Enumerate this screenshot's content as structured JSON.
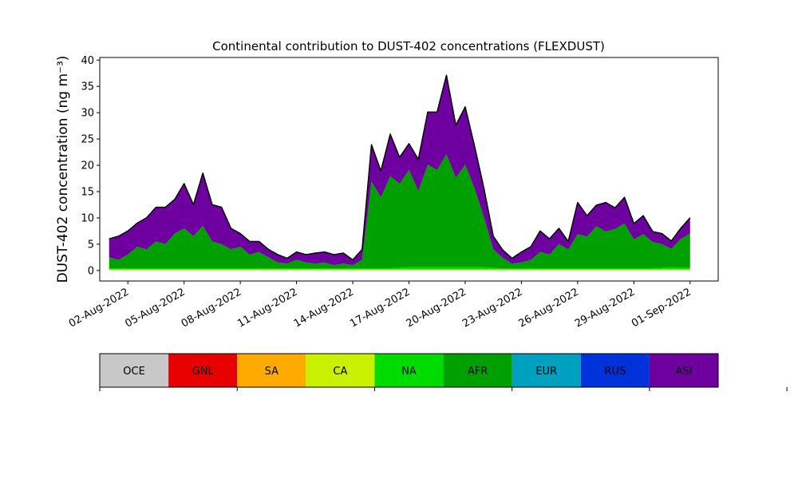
{
  "chart_data": {
    "type": "area",
    "title": "Continental contribution to DUST-402 concentrations (FLEXDUST)",
    "ylabel": "DUST-402 concentration (ng m⁻³)",
    "ylim": [
      -2,
      40.5
    ],
    "yticks": [
      0,
      5,
      10,
      15,
      20,
      25,
      30,
      35,
      40
    ],
    "xlim": [
      "2022-07-31T12:00",
      "2022-09-02T12:00"
    ],
    "xtick_labels": [
      "02-Aug-2022",
      "05-Aug-2022",
      "08-Aug-2022",
      "11-Aug-2022",
      "14-Aug-2022",
      "17-Aug-2022",
      "20-Aug-2022",
      "23-Aug-2022",
      "26-Aug-2022",
      "29-Aug-2022",
      "01-Sep-2022"
    ],
    "xtick_dates": [
      "2022-08-02",
      "2022-08-05",
      "2022-08-08",
      "2022-08-11",
      "2022-08-14",
      "2022-08-17",
      "2022-08-20",
      "2022-08-23",
      "2022-08-26",
      "2022-08-29",
      "2022-09-01"
    ],
    "x": [
      "2022-08-01T00:00",
      "2022-08-01T12:00",
      "2022-08-02T00:00",
      "2022-08-02T12:00",
      "2022-08-03T00:00",
      "2022-08-03T12:00",
      "2022-08-04T00:00",
      "2022-08-04T12:00",
      "2022-08-05T00:00",
      "2022-08-05T12:00",
      "2022-08-06T00:00",
      "2022-08-06T12:00",
      "2022-08-07T00:00",
      "2022-08-07T12:00",
      "2022-08-08T00:00",
      "2022-08-08T12:00",
      "2022-08-09T00:00",
      "2022-08-09T12:00",
      "2022-08-10T00:00",
      "2022-08-10T12:00",
      "2022-08-11T00:00",
      "2022-08-11T12:00",
      "2022-08-12T00:00",
      "2022-08-12T12:00",
      "2022-08-13T00:00",
      "2022-08-13T12:00",
      "2022-08-14T00:00",
      "2022-08-14T12:00",
      "2022-08-15T00:00",
      "2022-08-15T12:00",
      "2022-08-16T00:00",
      "2022-08-16T12:00",
      "2022-08-17T00:00",
      "2022-08-17T12:00",
      "2022-08-18T00:00",
      "2022-08-18T12:00",
      "2022-08-19T00:00",
      "2022-08-19T12:00",
      "2022-08-20T00:00",
      "2022-08-20T12:00",
      "2022-08-21T00:00",
      "2022-08-21T12:00",
      "2022-08-22T00:00",
      "2022-08-22T12:00",
      "2022-08-23T00:00",
      "2022-08-23T12:00",
      "2022-08-24T00:00",
      "2022-08-24T12:00",
      "2022-08-25T00:00",
      "2022-08-25T12:00",
      "2022-08-26T00:00",
      "2022-08-26T12:00",
      "2022-08-27T00:00",
      "2022-08-27T12:00",
      "2022-08-28T00:00",
      "2022-08-28T12:00",
      "2022-08-29T00:00",
      "2022-08-29T12:00",
      "2022-08-30T00:00",
      "2022-08-30T12:00",
      "2022-08-31T00:00",
      "2022-08-31T12:00",
      "2022-09-01T00:00"
    ],
    "series": [
      {
        "name": "OCE",
        "color": "#c8c8c8",
        "values": [
          0.05,
          0.05,
          0.05,
          0.05,
          0.05,
          0.05,
          0.05,
          0.05,
          0.05,
          0.05,
          0.05,
          0.05,
          0.05,
          0.05,
          0.05,
          0.05,
          0.05,
          0.05,
          0.05,
          0.05,
          0.05,
          0.05,
          0.05,
          0.05,
          0.05,
          0.05,
          0.05,
          0.05,
          0.05,
          0.05,
          0.05,
          0.05,
          0.05,
          0.05,
          0.05,
          0.05,
          0.05,
          0.05,
          0.05,
          0.05,
          0.05,
          0.05,
          0.05,
          0.05,
          0.05,
          0.05,
          0.05,
          0.05,
          0.05,
          0.05,
          0.05,
          0.05,
          0.05,
          0.05,
          0.05,
          0.05,
          0.05,
          0.05,
          0.05,
          0.05,
          0.05,
          0.05,
          0.05
        ]
      },
      {
        "name": "GNL",
        "color": "#e60000",
        "values": [
          0,
          0,
          0,
          0,
          0,
          0,
          0,
          0,
          0,
          0,
          0,
          0,
          0,
          0,
          0,
          0,
          0,
          0,
          0,
          0,
          0,
          0,
          0,
          0,
          0,
          0,
          0,
          0,
          0,
          0,
          0,
          0,
          0,
          0,
          0,
          0,
          0,
          0,
          0,
          0,
          0,
          0,
          0,
          0,
          0,
          0,
          0,
          0,
          0,
          0,
          0,
          0,
          0,
          0,
          0,
          0,
          0,
          0,
          0,
          0,
          0,
          0,
          0
        ]
      },
      {
        "name": "SA",
        "color": "#ffaa00",
        "values": [
          0.02,
          0.02,
          0.02,
          0.02,
          0.02,
          0.02,
          0.02,
          0.02,
          0.02,
          0.02,
          0.02,
          0.02,
          0.02,
          0.02,
          0.02,
          0.02,
          0.02,
          0.02,
          0.02,
          0.02,
          0.02,
          0.02,
          0.02,
          0.02,
          0.02,
          0.02,
          0.02,
          0.02,
          0.02,
          0.02,
          0.02,
          0.02,
          0.02,
          0.02,
          0.02,
          0.02,
          0.02,
          0.02,
          0.02,
          0.02,
          0.02,
          0.02,
          0.02,
          0.02,
          0.02,
          0.02,
          0.02,
          0.02,
          0.02,
          0.02,
          0.02,
          0.02,
          0.02,
          0.02,
          0.02,
          0.02,
          0.02,
          0.02,
          0.02,
          0.02,
          0.02,
          0.02,
          0.02
        ]
      },
      {
        "name": "CA",
        "color": "#c8f000",
        "values": [
          0.15,
          0.15,
          0.15,
          0.15,
          0.15,
          0.15,
          0.15,
          0.15,
          0.15,
          0.15,
          0.15,
          0.15,
          0.15,
          0.15,
          0.15,
          0.15,
          0.15,
          0.15,
          0.15,
          0.15,
          0.15,
          0.15,
          0.15,
          0.15,
          0.15,
          0.15,
          0.15,
          0.15,
          0.15,
          0.15,
          0.15,
          0.15,
          0.15,
          0.15,
          0.15,
          0.15,
          0.15,
          0.15,
          0.15,
          0.15,
          0.15,
          0.15,
          0.15,
          0.15,
          0.15,
          0.15,
          0.15,
          0.15,
          0.15,
          0.15,
          0.15,
          0.15,
          0.15,
          0.15,
          0.15,
          0.15,
          0.15,
          0.15,
          0.15,
          0.15,
          0.15,
          0.15,
          0.15
        ]
      },
      {
        "name": "NA",
        "color": "#00dc00",
        "values": [
          0.2,
          0.2,
          0.2,
          0.2,
          0.2,
          0.2,
          0.2,
          0.2,
          0.2,
          0.2,
          0.2,
          0.2,
          0.2,
          0.2,
          0.2,
          0.2,
          0.2,
          0.2,
          0.2,
          0.2,
          0.2,
          0.2,
          0.2,
          0.2,
          0.2,
          0.2,
          0.2,
          0.2,
          0.2,
          0.2,
          0.2,
          0.3,
          0.4,
          0.4,
          0.4,
          0.4,
          0.4,
          0.4,
          0.4,
          0.4,
          0.4,
          0.3,
          0.2,
          0.2,
          0.2,
          0.2,
          0.2,
          0.2,
          0.2,
          0.2,
          0.2,
          0.2,
          0.2,
          0.2,
          0.2,
          0.2,
          0.2,
          0.2,
          0.2,
          0.3,
          0.4,
          0.3,
          0.3
        ]
      },
      {
        "name": "AFR",
        "color": "#00a000",
        "values": [
          2.1,
          1.6,
          2.6,
          4.1,
          3.6,
          5.1,
          4.6,
          6.6,
          7.6,
          6.1,
          8.1,
          5.1,
          4.6,
          3.6,
          4.1,
          2.6,
          3.1,
          2.1,
          1.1,
          0.9,
          1.6,
          1.1,
          0.9,
          1.1,
          0.6,
          0.9,
          0.6,
          1.6,
          16.5,
          13.5,
          17.5,
          16.0,
          18.5,
          14.5,
          19.5,
          18.5,
          21.5,
          17.0,
          19.5,
          15.0,
          9.5,
          3.5,
          2.0,
          0.9,
          1.1,
          1.6,
          3.1,
          2.6,
          4.6,
          3.6,
          6.5,
          6.0,
          8.0,
          7.0,
          7.5,
          8.5,
          5.5,
          6.5,
          5.0,
          4.5,
          3.5,
          5.5,
          6.5
        ]
      },
      {
        "name": "EUR",
        "color": "#00a0c0",
        "values": [
          0,
          0,
          0,
          0,
          0,
          0,
          0,
          0,
          0,
          0,
          0,
          0,
          0,
          0,
          0,
          0,
          0,
          0,
          0,
          0,
          0,
          0,
          0,
          0,
          0,
          0,
          0,
          0,
          0,
          0,
          0,
          0,
          0,
          0,
          0,
          0,
          0,
          0,
          0,
          0,
          0,
          0,
          0,
          0,
          0,
          0,
          0,
          0,
          0,
          0,
          0,
          0,
          0,
          0,
          0,
          0,
          0,
          0,
          0,
          0,
          0,
          0,
          0
        ]
      },
      {
        "name": "RUS",
        "color": "#0032dc",
        "values": [
          0,
          0,
          0,
          0,
          0,
          0,
          0,
          0,
          0,
          0,
          0,
          0,
          0,
          0,
          0,
          0,
          0,
          0,
          0,
          0,
          0,
          0,
          0,
          0,
          0,
          0,
          0,
          0,
          0,
          0,
          0,
          0,
          0,
          0,
          0,
          0,
          0,
          0,
          0,
          0,
          0,
          0,
          0,
          0,
          0,
          0,
          0,
          0,
          0,
          0,
          0,
          0,
          0,
          0,
          0,
          0,
          0,
          0,
          0,
          0,
          0,
          0,
          0
        ]
      },
      {
        "name": "ASI",
        "color": "#6e00a0",
        "values": [
          3.5,
          4.5,
          4.5,
          4.5,
          6.0,
          6.5,
          7.0,
          6.5,
          8.5,
          6.0,
          10.0,
          7.0,
          7.0,
          4.0,
          2.5,
          2.5,
          2.0,
          1.5,
          1.5,
          1.0,
          1.5,
          1.5,
          2.0,
          2.0,
          2.0,
          2.0,
          1.0,
          2.0,
          7.0,
          5.0,
          8.0,
          5.0,
          5.0,
          6.0,
          10.0,
          11.0,
          15.0,
          10.0,
          11.0,
          8.0,
          5.5,
          2.5,
          1.5,
          1.0,
          2.0,
          2.5,
          4.0,
          3.0,
          3.0,
          1.5,
          6.0,
          4.0,
          4.0,
          5.5,
          4.0,
          5.0,
          3.0,
          3.5,
          2.0,
          2.0,
          1.5,
          2.0,
          3.0
        ]
      }
    ],
    "total_line_color": "#000000",
    "legend_placement": "bottom colorbar",
    "grid": false
  }
}
